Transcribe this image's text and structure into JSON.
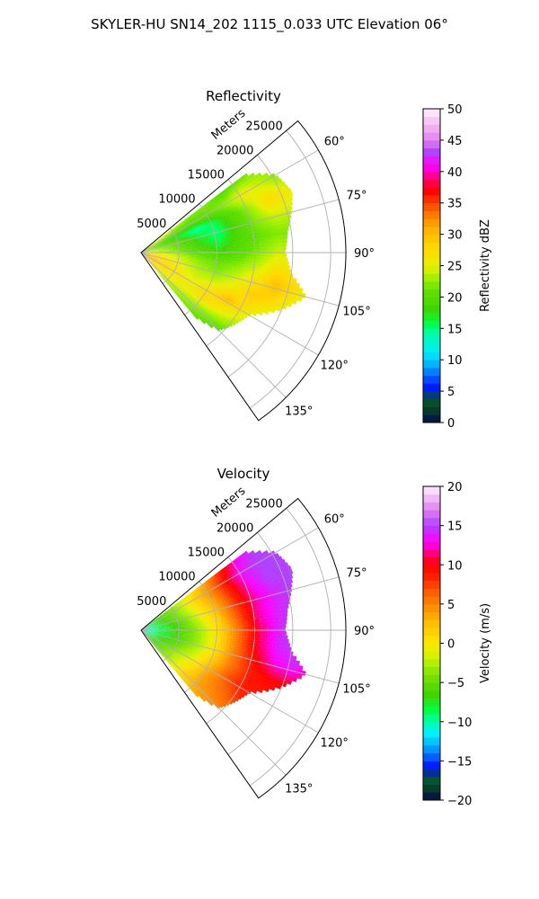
{
  "figure": {
    "title": "SKYLER-HU  SN14_202  1115_0.033 UTC Elevation 06°"
  },
  "chart_data": [
    {
      "type": "heatmap",
      "title": "Reflectivity",
      "radial_axis_label": "Meters",
      "radial_ticks": [
        5000,
        10000,
        15000,
        20000,
        25000
      ],
      "radial_tick_labels": [
        "5000",
        "10000",
        "15000",
        "20000",
        "25000"
      ],
      "radial_max": 27000,
      "theta_range": [
        50,
        145
      ],
      "theta_ticks": [
        60,
        75,
        90,
        105,
        120,
        135
      ],
      "theta_tick_labels": [
        "60°",
        "75°",
        "90°",
        "105°",
        "120°",
        "135°"
      ],
      "grid": true,
      "colorbar": {
        "label": "Reflectivity dBZ",
        "range": [
          0,
          50
        ],
        "ticks": [
          0,
          5,
          10,
          15,
          20,
          25,
          30,
          35,
          40,
          45,
          50
        ],
        "tick_labels": [
          "0",
          "5",
          "10",
          "15",
          "20",
          "25",
          "30",
          "35",
          "40",
          "45",
          "50"
        ],
        "stops": [
          {
            "v": 0,
            "c": "#000a4a"
          },
          {
            "v": 2,
            "c": "#053d2a"
          },
          {
            "v": 4,
            "c": "#0a5c2a"
          },
          {
            "v": 5,
            "c": "#0000ff"
          },
          {
            "v": 7,
            "c": "#0050ff"
          },
          {
            "v": 9,
            "c": "#00a8ff"
          },
          {
            "v": 11,
            "c": "#00e8ff"
          },
          {
            "v": 14,
            "c": "#00ffb0"
          },
          {
            "v": 16,
            "c": "#00ff40"
          },
          {
            "v": 18,
            "c": "#40d400"
          },
          {
            "v": 21,
            "c": "#60e000"
          },
          {
            "v": 23,
            "c": "#a0f000"
          },
          {
            "v": 25,
            "c": "#e8f000"
          },
          {
            "v": 28,
            "c": "#ffd800"
          },
          {
            "v": 31,
            "c": "#ffb000"
          },
          {
            "v": 33,
            "c": "#ff8000"
          },
          {
            "v": 35,
            "c": "#ff4000"
          },
          {
            "v": 37,
            "c": "#ff0000"
          },
          {
            "v": 39,
            "c": "#ff0080"
          },
          {
            "v": 41,
            "c": "#ff00ff"
          },
          {
            "v": 43,
            "c": "#b040ff"
          },
          {
            "v": 45,
            "c": "#e080f0"
          },
          {
            "v": 47,
            "c": "#f0b0f0"
          },
          {
            "v": 50,
            "c": "#fff0ff"
          }
        ]
      },
      "field": {
        "r_max": 26000,
        "edges": [
          {
            "theta": 53,
            "r": 17000
          },
          {
            "theta": 60,
            "r": 20500
          },
          {
            "theta": 68,
            "r": 21500
          },
          {
            "theta": 75,
            "r": 20500
          },
          {
            "theta": 82,
            "r": 19500
          },
          {
            "theta": 90,
            "r": 19000
          },
          {
            "theta": 98,
            "r": 20000
          },
          {
            "theta": 105,
            "r": 22500
          },
          {
            "theta": 112,
            "r": 20000
          },
          {
            "theta": 120,
            "r": 16500
          },
          {
            "theta": 128,
            "r": 15500
          },
          {
            "theta": 135,
            "r": 14500
          },
          {
            "theta": 140,
            "r": 11000
          }
        ],
        "values": [
          [
            28,
            26,
            24,
            22,
            22,
            20,
            21,
            22,
            22,
            20,
            18
          ],
          [
            24,
            22,
            20,
            20,
            21,
            23,
            26,
            24,
            22,
            20,
            19
          ],
          [
            22,
            20,
            17,
            14,
            16,
            20,
            23,
            28,
            26,
            22,
            20
          ],
          [
            26,
            22,
            20,
            17,
            15,
            19,
            22,
            24,
            24,
            21,
            19
          ],
          [
            25,
            23,
            21,
            18,
            16,
            19,
            21,
            22,
            22,
            21,
            20
          ],
          [
            27,
            24,
            22,
            20,
            18,
            20,
            22,
            24,
            23,
            21,
            19
          ],
          [
            29,
            26,
            24,
            22,
            21,
            22,
            24,
            27,
            26,
            22,
            19
          ],
          [
            30,
            27,
            25,
            23,
            22,
            24,
            27,
            30,
            28,
            24,
            20
          ],
          [
            32,
            28,
            26,
            24,
            24,
            26,
            29,
            28,
            25,
            22,
            19
          ],
          [
            33,
            29,
            27,
            25,
            27,
            30,
            27,
            24,
            22,
            20,
            18
          ],
          [
            31,
            28,
            26,
            26,
            28,
            26,
            24,
            22,
            20,
            19,
            18
          ],
          [
            30,
            27,
            25,
            24,
            23,
            22,
            21,
            20,
            19,
            18,
            17
          ],
          [
            28,
            25,
            23,
            22,
            21,
            20,
            19,
            18,
            18,
            17,
            17
          ]
        ]
      }
    },
    {
      "type": "heatmap",
      "title": "Velocity",
      "radial_axis_label": "Meters",
      "radial_ticks": [
        5000,
        10000,
        15000,
        20000,
        25000
      ],
      "radial_tick_labels": [
        "5000",
        "10000",
        "15000",
        "20000",
        "25000"
      ],
      "radial_max": 27000,
      "theta_range": [
        50,
        145
      ],
      "theta_ticks": [
        60,
        75,
        90,
        105,
        120,
        135
      ],
      "theta_tick_labels": [
        "60°",
        "75°",
        "90°",
        "105°",
        "120°",
        "135°"
      ],
      "grid": true,
      "colorbar": {
        "label": "Velocity (m/s)",
        "range": [
          -20,
          20
        ],
        "ticks": [
          -20,
          -15,
          -10,
          -5,
          0,
          5,
          10,
          15,
          20
        ],
        "tick_labels": [
          "−20",
          "−15",
          "−10",
          "−5",
          "0",
          "5",
          "10",
          "15",
          "20"
        ],
        "stops": [
          {
            "v": -20,
            "c": "#000a4a"
          },
          {
            "v": -18.5,
            "c": "#053d2a"
          },
          {
            "v": -17,
            "c": "#0a5c3a"
          },
          {
            "v": -16,
            "c": "#0000ff"
          },
          {
            "v": -14.5,
            "c": "#0060ff"
          },
          {
            "v": -13,
            "c": "#00b0ff"
          },
          {
            "v": -11.5,
            "c": "#00f0ff"
          },
          {
            "v": -10,
            "c": "#00ffb0"
          },
          {
            "v": -8.5,
            "c": "#00ff40"
          },
          {
            "v": -6.5,
            "c": "#40d400"
          },
          {
            "v": -4.5,
            "c": "#70e000"
          },
          {
            "v": -2.5,
            "c": "#b0f000"
          },
          {
            "v": -1,
            "c": "#e8f000"
          },
          {
            "v": 0.5,
            "c": "#ffe000"
          },
          {
            "v": 2.5,
            "c": "#ffc000"
          },
          {
            "v": 4.5,
            "c": "#ff9000"
          },
          {
            "v": 6.5,
            "c": "#ff6000"
          },
          {
            "v": 8.5,
            "c": "#ff2000"
          },
          {
            "v": 10,
            "c": "#ff0000"
          },
          {
            "v": 11.5,
            "c": "#ff0080"
          },
          {
            "v": 13,
            "c": "#ff00ff"
          },
          {
            "v": 15,
            "c": "#b040ff"
          },
          {
            "v": 17,
            "c": "#e080f0"
          },
          {
            "v": 20,
            "c": "#fff0ff"
          }
        ]
      },
      "field": {
        "r_max": 26000,
        "edges": [
          {
            "theta": 53,
            "r": 17000
          },
          {
            "theta": 60,
            "r": 20500
          },
          {
            "theta": 68,
            "r": 21500
          },
          {
            "theta": 75,
            "r": 20500
          },
          {
            "theta": 82,
            "r": 19500
          },
          {
            "theta": 90,
            "r": 19000
          },
          {
            "theta": 98,
            "r": 20000
          },
          {
            "theta": 105,
            "r": 22500
          },
          {
            "theta": 112,
            "r": 20000
          },
          {
            "theta": 120,
            "r": 16500
          },
          {
            "theta": 128,
            "r": 15500
          },
          {
            "theta": 135,
            "r": 14500
          },
          {
            "theta": 140,
            "r": 11000
          }
        ],
        "values": [
          [
            -10,
            -6,
            -3,
            0,
            4,
            9,
            13,
            15,
            15,
            16,
            16
          ],
          [
            -11,
            -7,
            -4,
            1,
            5,
            10,
            14,
            15,
            15,
            16,
            16
          ],
          [
            -11,
            -7,
            -4,
            0,
            4,
            9,
            13,
            15,
            15,
            17,
            17
          ],
          [
            -12,
            -8,
            -5,
            -1,
            3,
            8,
            12,
            14,
            15,
            16,
            16
          ],
          [
            -12,
            -8,
            -6,
            -2,
            2,
            7,
            12,
            14,
            15,
            15,
            15
          ],
          [
            -12,
            -9,
            -6,
            -3,
            1,
            6,
            11,
            14,
            15,
            15,
            15
          ],
          [
            -12,
            -8,
            -6,
            -3,
            1,
            6,
            11,
            14,
            15,
            15,
            14
          ],
          [
            -11,
            -8,
            -6,
            -3,
            1,
            6,
            10,
            13,
            14,
            12,
            11
          ],
          [
            -11,
            -7,
            -5,
            -2,
            2,
            6,
            9,
            10,
            10,
            10,
            10
          ],
          [
            -10,
            -7,
            -4,
            -1,
            3,
            7,
            9,
            9,
            9,
            9,
            9
          ],
          [
            -10,
            -6,
            -3,
            0,
            4,
            6,
            8,
            8,
            8,
            8,
            8
          ],
          [
            -9,
            -6,
            -3,
            1,
            4,
            5,
            6,
            6,
            6,
            6,
            6
          ],
          [
            -9,
            -5,
            -2,
            1,
            3,
            4,
            4,
            4,
            4,
            4,
            4
          ]
        ]
      }
    }
  ]
}
